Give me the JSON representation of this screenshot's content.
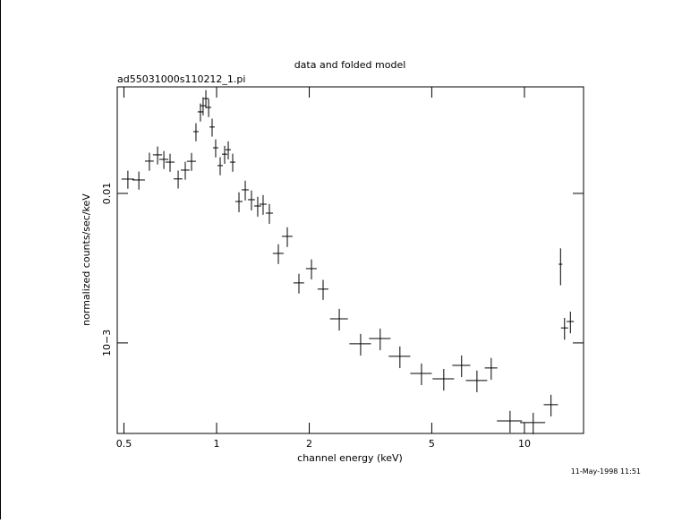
{
  "chart_data": {
    "type": "scatter",
    "title": "data and folded model",
    "subtitle": "ad55031000s110212_1.pi",
    "x_label": "channel energy (keV)",
    "y_label": "normalized counts/sec/keV",
    "timestamp": "11-May-1998 11:51",
    "log_x": true,
    "log_y": true,
    "grid": false,
    "xlim": [
      0.4756,
      15.56
    ],
    "ylim": [
      0.000248,
      0.0516
    ],
    "xticks": [
      0.5,
      1,
      2,
      5,
      10
    ],
    "yticks": [
      {
        "value": 0.001,
        "label": "10−3"
      },
      0.01
    ],
    "series": [
      {
        "color": "#000000",
        "x": [
          0.515,
          0.559,
          0.605,
          0.643,
          0.674,
          0.706,
          0.75,
          0.791,
          0.829,
          0.857,
          0.886,
          0.904,
          0.923,
          0.942,
          0.967,
          0.993,
          1.027,
          1.062,
          1.091,
          1.128,
          1.182,
          1.239,
          1.298,
          1.36,
          1.416,
          1.484,
          1.587,
          1.697,
          1.851,
          2.033,
          2.218,
          2.503,
          2.937,
          3.4,
          3.94,
          4.63,
          5.47,
          6.25,
          7.01,
          7.8,
          8.98,
          10.68,
          12.2,
          13.1,
          13.5,
          14.1
        ],
        "xerr": [
          0.024,
          0.026,
          0.02,
          0.022,
          0.023,
          0.024,
          0.025,
          0.026,
          0.028,
          0.017,
          0.018,
          0.018,
          0.019,
          0.019,
          0.019,
          0.02,
          0.021,
          0.021,
          0.022,
          0.023,
          0.032,
          0.033,
          0.035,
          0.036,
          0.038,
          0.04,
          0.064,
          0.068,
          0.074,
          0.082,
          0.089,
          0.167,
          0.236,
          0.273,
          0.316,
          0.372,
          0.439,
          0.42,
          0.56,
          0.37,
          0.84,
          1.0,
          0.65,
          0.18,
          0.36,
          0.38
        ],
        "values": [
          0.01247,
          0.0123,
          0.01644,
          0.01811,
          0.01689,
          0.01619,
          0.0125,
          0.01432,
          0.0164,
          0.0259,
          0.0351,
          0.0386,
          0.0431,
          0.0376,
          0.0278,
          0.0202,
          0.01535,
          0.0183,
          0.0196,
          0.01619,
          0.00883,
          0.01057,
          0.00908,
          0.00824,
          0.00847,
          0.00738,
          0.00397,
          0.00516,
          0.00252,
          0.00314,
          0.00229,
          0.00145,
          0.000986,
          0.00107,
          0.000813,
          0.000625,
          0.000575,
          0.000708,
          0.000561,
          0.00068,
          0.000301,
          0.000293,
          0.000386,
          0.00336,
          0.00126,
          0.00139
        ],
        "yerr": [
          0.00172,
          0.0017,
          0.00227,
          0.0025,
          0.00233,
          0.00223,
          0.00172,
          0.00197,
          0.00226,
          0.00357,
          0.00484,
          0.00532,
          0.00594,
          0.00519,
          0.00383,
          0.00279,
          0.00212,
          0.00252,
          0.0027,
          0.00223,
          0.00134,
          0.0016,
          0.00138,
          0.00125,
          0.00128,
          0.00112,
          0.0006,
          0.00078,
          0.00038,
          0.00048,
          0.00035,
          0.00024,
          0.000163,
          0.000177,
          0.000135,
          0.000103,
          9.5e-05,
          0.000117,
          9.3e-05,
          0.000113,
          5e-05,
          4.8e-05,
          6.4e-05,
          0.00093,
          0.00021,
          0.00023
        ]
      }
    ]
  }
}
